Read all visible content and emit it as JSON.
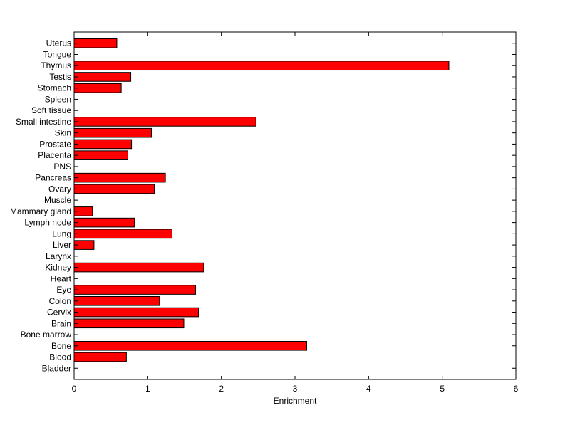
{
  "chart_data": {
    "type": "bar",
    "orientation": "horizontal",
    "title": "",
    "xlabel": "Enrichment",
    "ylabel": "",
    "xlim": [
      0,
      6
    ],
    "xticks": [
      "0",
      "1",
      "2",
      "3",
      "4",
      "5",
      "6"
    ],
    "grid": false,
    "legend": "none",
    "bar_color": "#ff0000",
    "edge_color": "#000000",
    "categories": [
      "Bladder",
      "Blood",
      "Bone",
      "Bone marrow",
      "Brain",
      "Cervix",
      "Colon",
      "Eye",
      "Heart",
      "Kidney",
      "Larynx",
      "Liver",
      "Lung",
      "Lymph node",
      "Mammary gland",
      "Muscle",
      "Ovary",
      "Pancreas",
      "PNS",
      "Placenta",
      "Prostate",
      "Skin",
      "Small intestine",
      "Soft tissue",
      "Spleen",
      "Stomach",
      "Testis",
      "Thymus",
      "Tongue",
      "Uterus"
    ],
    "values": [
      0,
      0.71,
      3.16,
      0,
      1.49,
      1.69,
      1.16,
      1.65,
      0,
      1.76,
      0,
      0.27,
      1.33,
      0.82,
      0.25,
      0,
      1.09,
      1.24,
      0,
      0.73,
      0.78,
      1.05,
      2.47,
      0,
      0,
      0.64,
      0.77,
      5.09,
      0,
      0.58
    ]
  }
}
